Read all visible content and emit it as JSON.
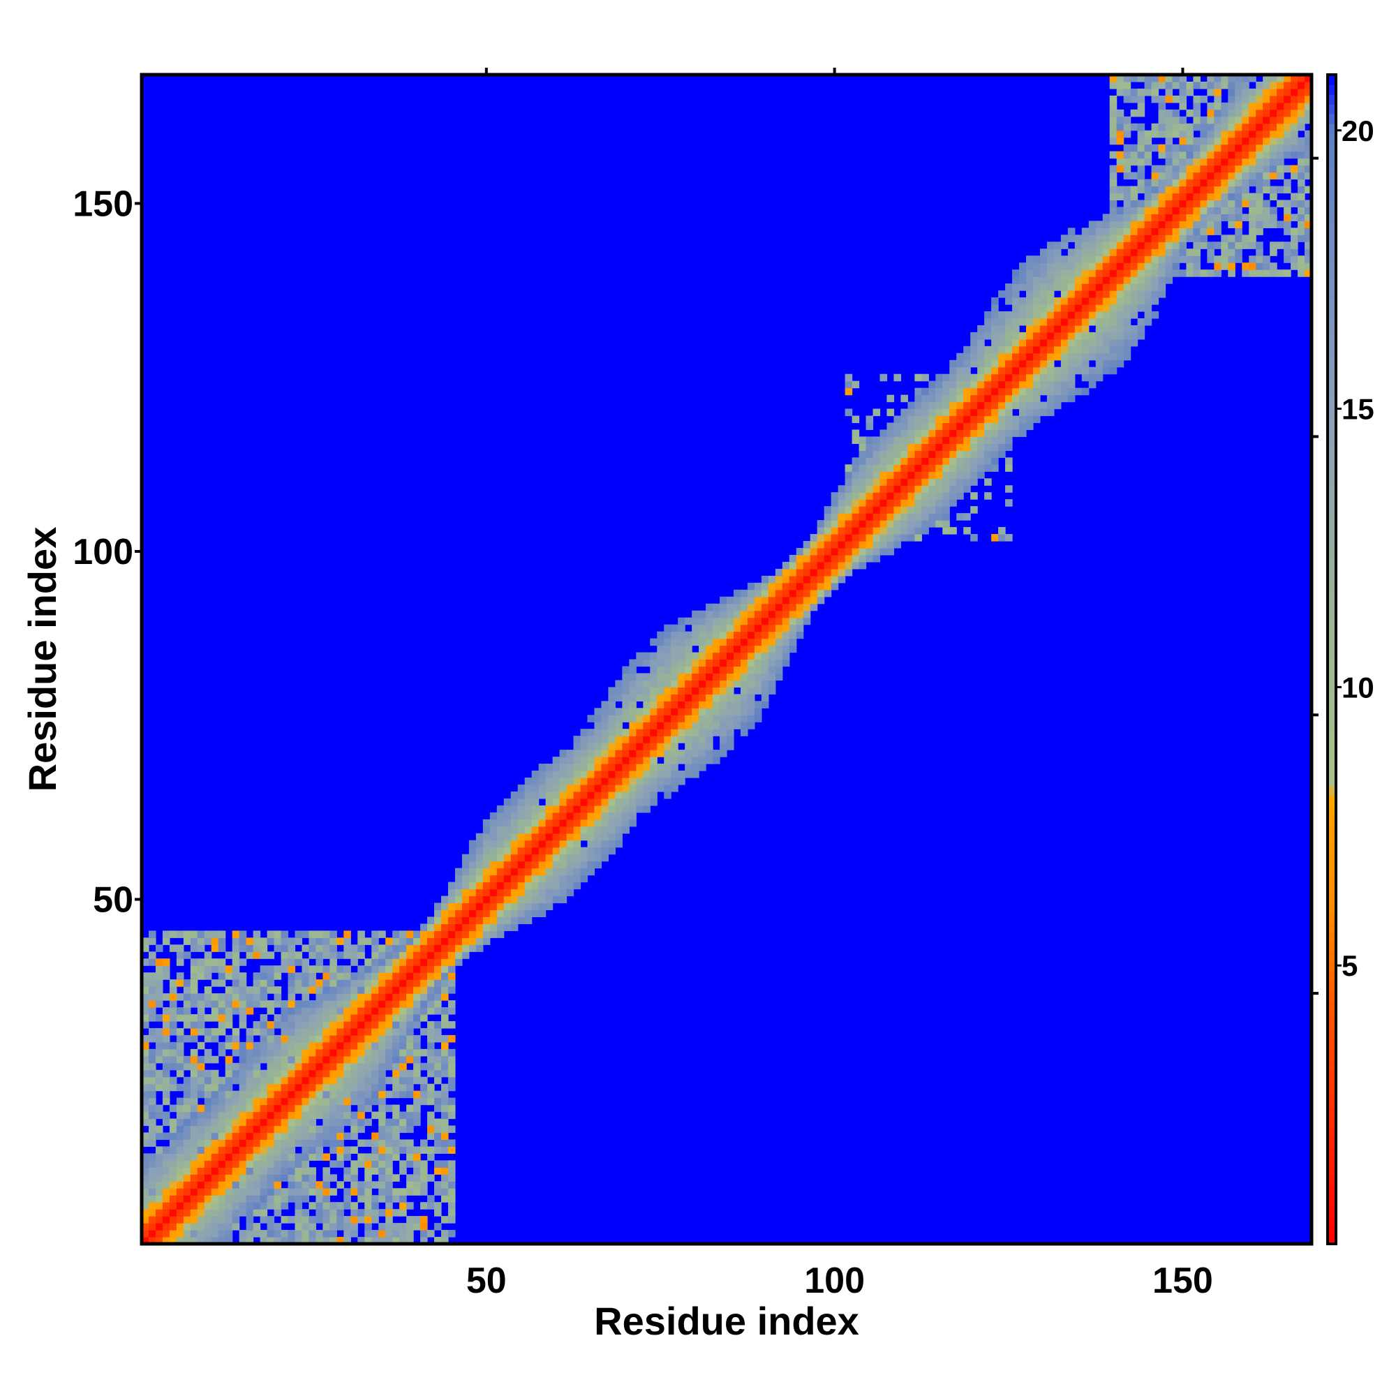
{
  "chart_data": {
    "type": "heatmap",
    "title": "",
    "xlabel": "Residue index",
    "ylabel": "Residue index",
    "n_residues": 168,
    "xlim": [
      1,
      168
    ],
    "ylim": [
      1,
      168
    ],
    "x_ticks": [
      50,
      100,
      150
    ],
    "y_ticks": [
      50,
      100,
      150
    ],
    "x_tick_labels": [
      "50",
      "100",
      "150"
    ],
    "y_tick_labels": [
      "50",
      "100",
      "150"
    ],
    "colorbar": {
      "range": [
        0,
        21
      ],
      "ticks": [
        5,
        10,
        15,
        20
      ],
      "tick_labels": [
        "5",
        "10",
        "15",
        "20"
      ],
      "placement": "right",
      "color_stops": [
        {
          "value": 0,
          "color": "#ff0000"
        },
        {
          "value": 4,
          "color": "#ff5000"
        },
        {
          "value": 6,
          "color": "#ff8c00"
        },
        {
          "value": 8,
          "color": "#ffa500"
        },
        {
          "value": 8.3,
          "color": "#a9c08a"
        },
        {
          "value": 11,
          "color": "#9bb792"
        },
        {
          "value": 15,
          "color": "#8aa0b8"
        },
        {
          "value": 20,
          "color": "#5f7fc4"
        },
        {
          "value": 21,
          "color": "#0000ff"
        }
      ]
    },
    "background_value": 21,
    "band": {
      "description_values": "distance along diagonal band; 0 on diagonal, ~3-8 within few residues, ~10-18 in halo",
      "core_halfwidth": 2,
      "inner_halfwidth": 4,
      "halo_halfwidth": 10
    },
    "contact_clusters": [
      {
        "i_range": [
          1,
          45
        ],
        "j_range": [
          1,
          45
        ],
        "level": "dense"
      },
      {
        "i_range": [
          140,
          168
        ],
        "j_range": [
          140,
          168
        ],
        "level": "dense"
      },
      {
        "i_range": [
          102,
          118
        ],
        "j_range": [
          102,
          125
        ],
        "level": "sparse"
      }
    ],
    "grid": false,
    "legend": "none"
  }
}
